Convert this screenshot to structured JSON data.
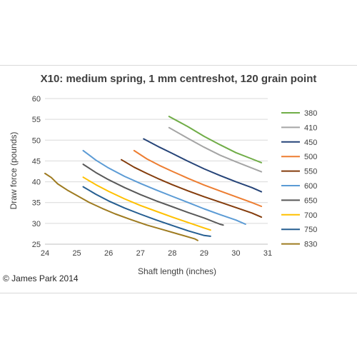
{
  "copyright": "© James Park 2014",
  "chart_data": {
    "type": "line",
    "title": "X10: medium spring, 1 mm centreshot, 120 grain point",
    "xlabel": "Shaft length (inches)",
    "ylabel": "Draw force (pounds)",
    "xlim": [
      24,
      31
    ],
    "ylim": [
      25,
      60
    ],
    "xticks": [
      "24",
      "25",
      "26",
      "27",
      "28",
      "29",
      "30",
      "31"
    ],
    "yticks": [
      "25",
      "30",
      "35",
      "40",
      "45",
      "50",
      "55",
      "60"
    ],
    "grid": "horizontal",
    "legend_position": "right",
    "series": [
      {
        "name": "380",
        "color": "#70ad47",
        "points": [
          [
            27.9,
            55.7
          ],
          [
            28.5,
            53.2
          ],
          [
            29.0,
            50.9
          ],
          [
            29.5,
            48.9
          ],
          [
            30.0,
            47.0
          ],
          [
            30.5,
            45.5
          ],
          [
            30.8,
            44.6
          ]
        ]
      },
      {
        "name": "410",
        "color": "#a5a5a5",
        "points": [
          [
            27.9,
            53.0
          ],
          [
            28.5,
            50.4
          ],
          [
            29.0,
            48.3
          ],
          [
            29.5,
            46.4
          ],
          [
            30.0,
            44.8
          ],
          [
            30.5,
            43.3
          ],
          [
            30.8,
            42.4
          ]
        ]
      },
      {
        "name": "450",
        "color": "#264478",
        "points": [
          [
            27.1,
            50.3
          ],
          [
            27.6,
            48.3
          ],
          [
            28.0,
            46.8
          ],
          [
            28.5,
            44.9
          ],
          [
            29.0,
            43.1
          ],
          [
            29.5,
            41.5
          ],
          [
            30.0,
            40.0
          ],
          [
            30.5,
            38.6
          ],
          [
            30.8,
            37.6
          ]
        ]
      },
      {
        "name": "500",
        "color": "#ed7d31",
        "points": [
          [
            26.8,
            47.5
          ],
          [
            27.2,
            45.5
          ],
          [
            27.6,
            43.9
          ],
          [
            28.0,
            42.5
          ],
          [
            28.5,
            40.8
          ],
          [
            29.0,
            39.2
          ],
          [
            29.5,
            37.8
          ],
          [
            30.0,
            36.4
          ],
          [
            30.5,
            35.0
          ],
          [
            30.8,
            34.1
          ]
        ]
      },
      {
        "name": "550",
        "color": "#843c0c",
        "points": [
          [
            26.4,
            45.3
          ],
          [
            26.8,
            43.5
          ],
          [
            27.2,
            42.0
          ],
          [
            27.6,
            40.6
          ],
          [
            28.0,
            39.3
          ],
          [
            28.5,
            37.8
          ],
          [
            29.0,
            36.4
          ],
          [
            29.5,
            35.1
          ],
          [
            30.0,
            33.8
          ],
          [
            30.5,
            32.5
          ],
          [
            30.8,
            31.5
          ]
        ]
      },
      {
        "name": "600",
        "color": "#5b9bd5",
        "points": [
          [
            25.2,
            47.5
          ],
          [
            25.6,
            45.2
          ],
          [
            26.0,
            43.3
          ],
          [
            26.5,
            41.3
          ],
          [
            27.0,
            39.6
          ],
          [
            27.5,
            38.0
          ],
          [
            28.0,
            36.5
          ],
          [
            28.5,
            35.0
          ],
          [
            29.0,
            33.5
          ],
          [
            29.5,
            32.1
          ],
          [
            30.0,
            30.8
          ],
          [
            30.3,
            29.8
          ]
        ]
      },
      {
        "name": "650",
        "color": "#595959",
        "points": [
          [
            25.2,
            44.2
          ],
          [
            25.6,
            42.2
          ],
          [
            26.0,
            40.5
          ],
          [
            26.5,
            38.6
          ],
          [
            27.0,
            36.9
          ],
          [
            27.5,
            35.4
          ],
          [
            28.0,
            34.0
          ],
          [
            28.5,
            32.6
          ],
          [
            29.0,
            31.3
          ],
          [
            29.5,
            29.8
          ],
          [
            29.6,
            29.6
          ]
        ]
      },
      {
        "name": "700",
        "color": "#ffc000",
        "points": [
          [
            25.2,
            41.1
          ],
          [
            25.6,
            39.3
          ],
          [
            26.0,
            37.7
          ],
          [
            26.5,
            35.9
          ],
          [
            27.0,
            34.3
          ],
          [
            27.5,
            32.9
          ],
          [
            28.0,
            31.5
          ],
          [
            28.5,
            30.2
          ],
          [
            29.0,
            28.9
          ],
          [
            29.2,
            28.4
          ]
        ]
      },
      {
        "name": "750",
        "color": "#255e91",
        "points": [
          [
            25.2,
            38.8
          ],
          [
            25.6,
            37.0
          ],
          [
            26.0,
            35.4
          ],
          [
            26.5,
            33.7
          ],
          [
            27.0,
            32.2
          ],
          [
            27.5,
            30.8
          ],
          [
            28.0,
            29.5
          ],
          [
            28.5,
            28.2
          ],
          [
            29.0,
            27.1
          ],
          [
            29.2,
            26.9
          ]
        ]
      },
      {
        "name": "830",
        "color": "#9e7b20",
        "points": [
          [
            24.0,
            42.0
          ],
          [
            24.2,
            41.0
          ],
          [
            24.4,
            39.5
          ],
          [
            24.7,
            38.0
          ],
          [
            25.0,
            36.7
          ],
          [
            25.4,
            35.0
          ],
          [
            25.8,
            33.6
          ],
          [
            26.2,
            32.3
          ],
          [
            26.7,
            30.9
          ],
          [
            27.2,
            29.6
          ],
          [
            27.7,
            28.5
          ],
          [
            28.2,
            27.4
          ],
          [
            28.7,
            26.3
          ],
          [
            28.8,
            25.9
          ]
        ]
      }
    ]
  }
}
